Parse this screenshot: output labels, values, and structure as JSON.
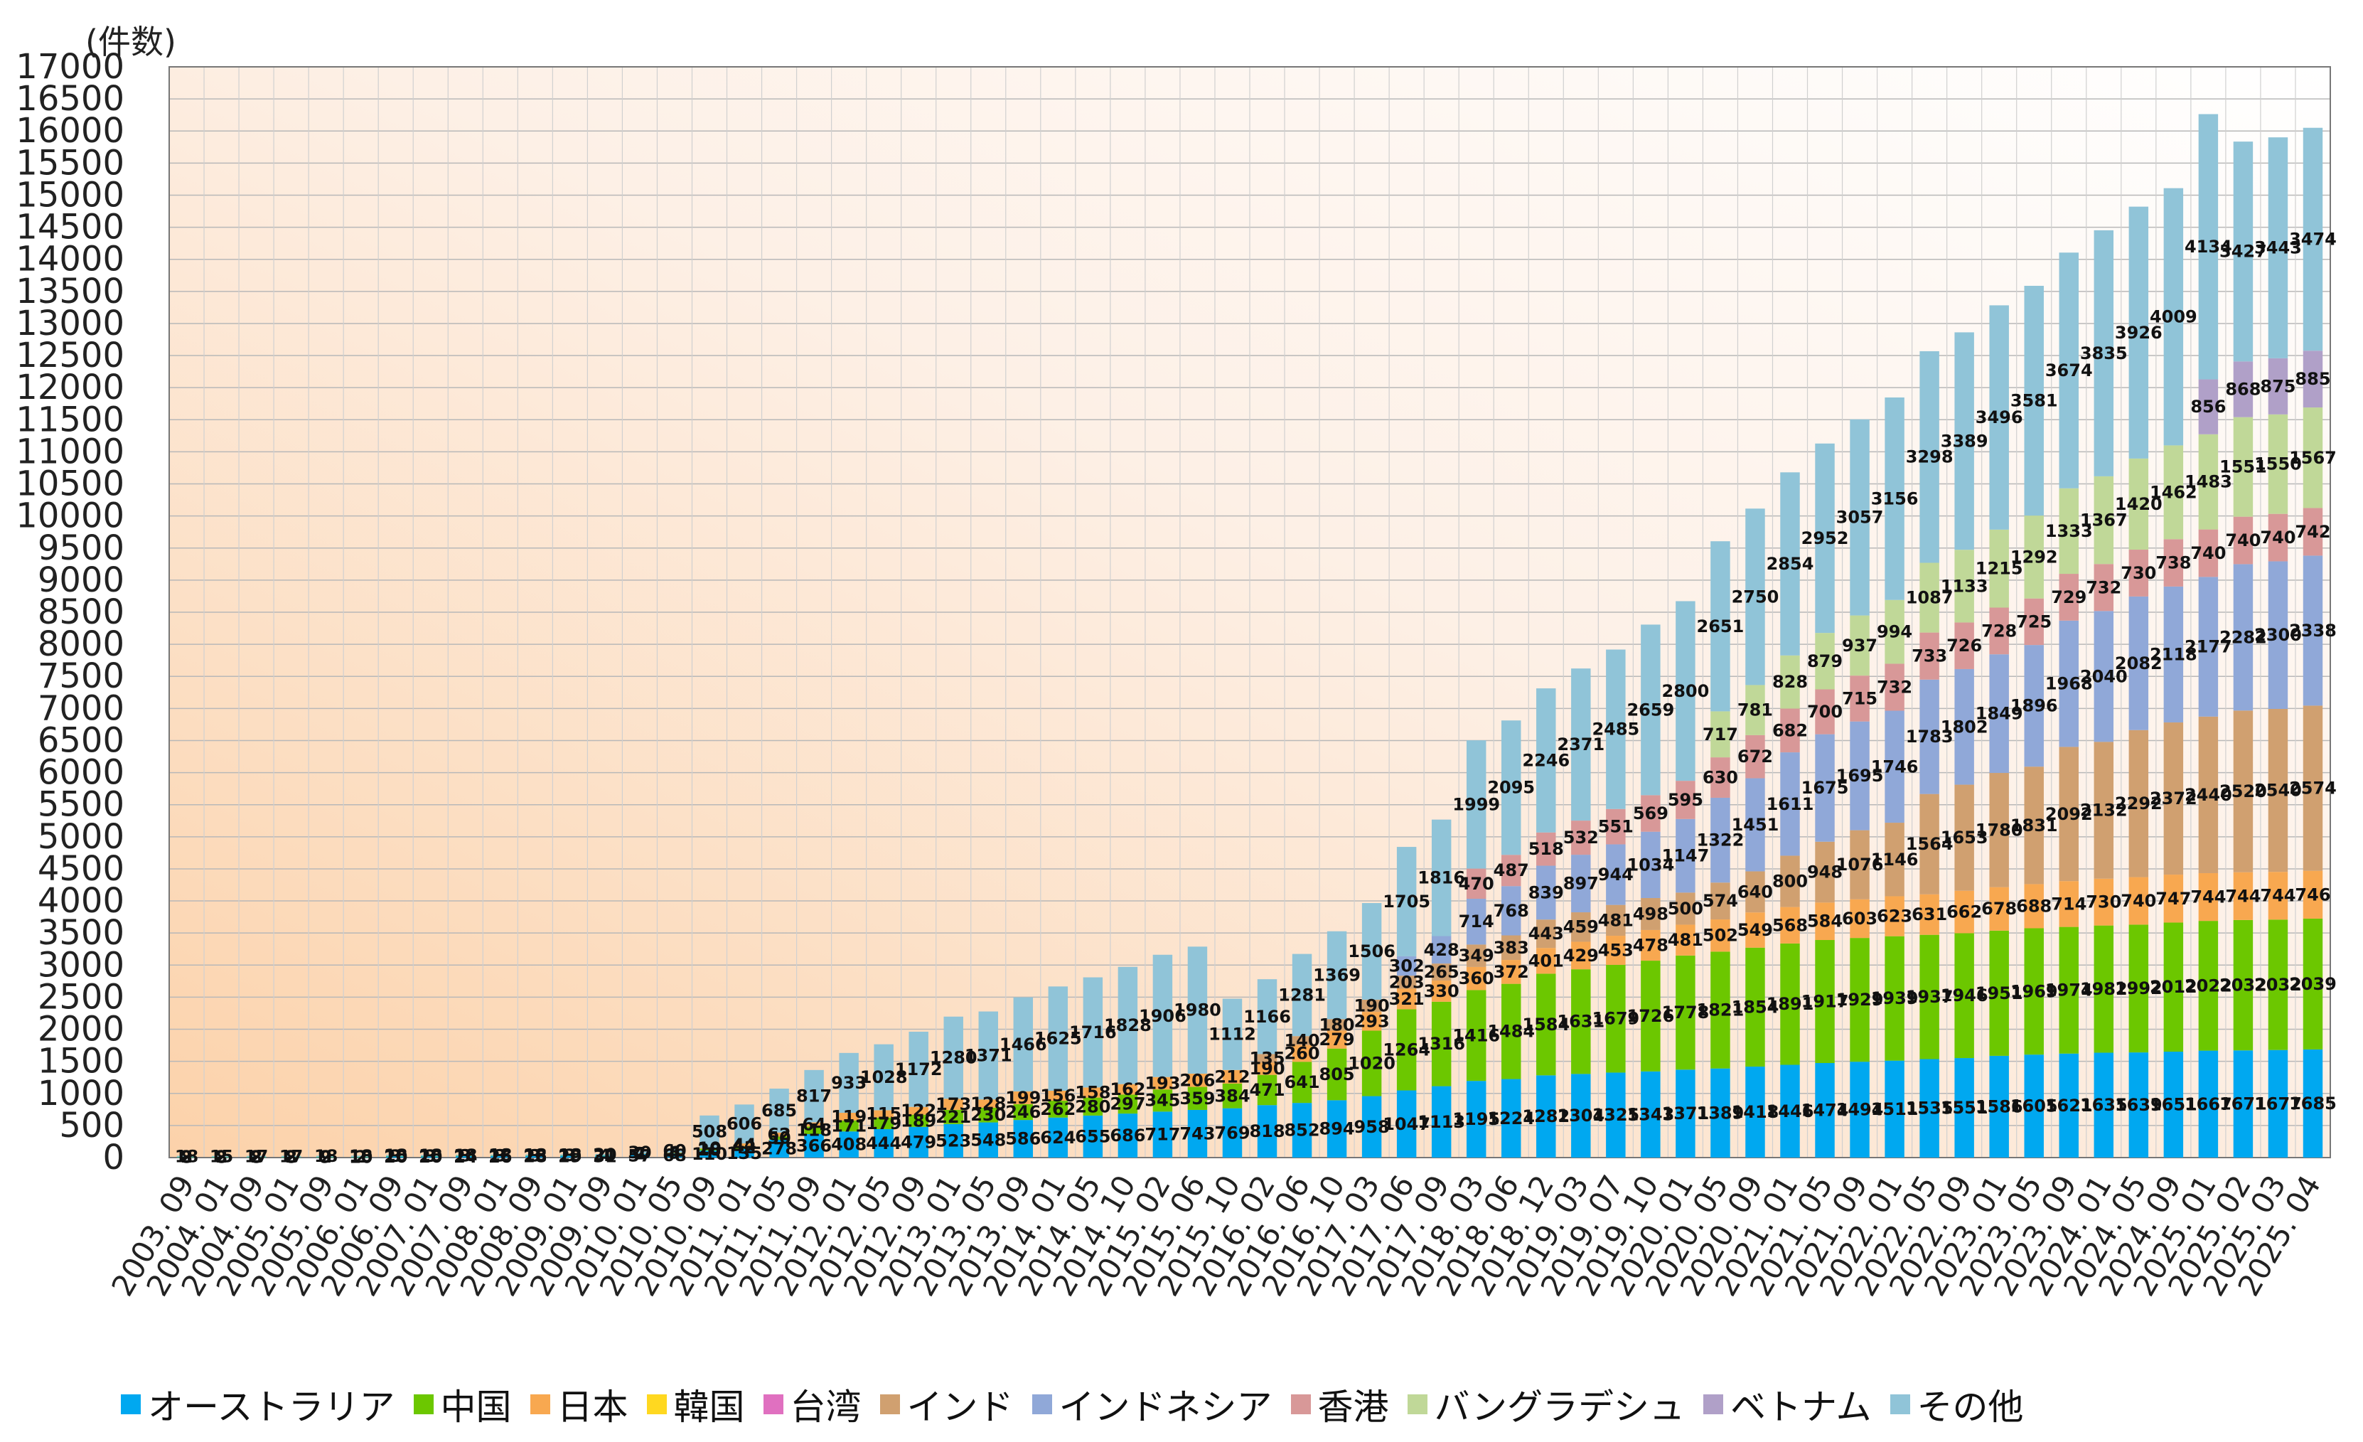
{
  "chart_data": {
    "type": "bar",
    "stacked": true,
    "ylabel": "(件数)",
    "ylim": [
      0,
      17000
    ],
    "ytick_step": 500,
    "grid": true,
    "legend_position": "bottom",
    "categories": [
      "2003.09",
      "2004.01",
      "2004.09",
      "2005.01",
      "2005.09",
      "2006.01",
      "2006.09",
      "2007.01",
      "2007.09",
      "2008.01",
      "2008.09",
      "2009.01",
      "2009.09",
      "2010.01",
      "2010.05",
      "2010.09",
      "2011.01",
      "2011.05",
      "2011.09",
      "2012.01",
      "2012.05",
      "2012.09",
      "2013.01",
      "2013.05",
      "2013.09",
      "2014.01",
      "2014.05",
      "2014.10",
      "2015.02",
      "2015.06",
      "2015.10",
      "2016.02",
      "2016.06",
      "2016.10",
      "2017.03",
      "2017.06",
      "2017.09",
      "2018.03",
      "2018.06",
      "2018.12",
      "2019.03",
      "2019.07",
      "2019.10",
      "2020.01",
      "2020.05",
      "2020.09",
      "2021.01",
      "2021.05",
      "2021.09",
      "2022.01",
      "2022.05",
      "2022.09",
      "2023.01",
      "2023.05",
      "2023.09",
      "2024.01",
      "2024.05",
      "2024.09",
      "2025.01",
      "2025.02",
      "2025.03",
      "2025.04"
    ],
    "tick_labels_shown": [
      "2003. 09",
      "2004. 01",
      "2004. 09",
      "2005. 01",
      "2005. 09",
      "2006. 01",
      "2006. 09",
      "2007. 01",
      "2007. 09",
      "2008. 01",
      "2008. 09",
      "2009. 01",
      "2009. 09",
      "2010. 01",
      "2010. 05",
      "2010. 09",
      "2011. 01",
      "2011. 05",
      "2011. 09",
      "2012. 01",
      "2012. 05",
      "2012. 09",
      "2013. 01",
      "2013. 05",
      "2013. 09",
      "2014. 01",
      "2014. 05",
      "2014. 10",
      "2015. 02",
      "2015. 06",
      "2015. 10",
      "2016. 02",
      "2016. 06",
      "2016. 10",
      "2017. 03",
      "2017. 06",
      "2017. 09",
      "2018. 03",
      "2018. 06",
      "2018. 12",
      "2019. 03",
      "2019. 07",
      "2019. 10",
      "2020. 01",
      "2020. 05",
      "2020. 09",
      "2021. 01",
      "2021. 05",
      "2021. 09",
      "2022. 01",
      "2022. 05",
      "2022. 09",
      "2023. 01",
      "2023. 05",
      "2023. 09",
      "2024. 01",
      "2024. 05",
      "2024. 09",
      "2025. 01",
      "2025. 02",
      "2025. 03",
      "2025. 04"
    ],
    "series": [
      {
        "name": "オーストラリア",
        "color": "#00A8F0",
        "values": [
          8,
          8,
          8,
          8,
          9,
          10,
          20,
          20,
          24,
          26,
          28,
          29,
          31,
          57,
          68,
          110,
          135,
          278,
          366,
          408,
          444,
          479,
          523,
          548,
          586,
          624,
          655,
          686,
          717,
          743,
          769,
          818,
          852,
          894,
          958,
          1047,
          1113,
          1195,
          1224,
          1282,
          1304,
          1325,
          1343,
          1371,
          1389,
          1418,
          1446,
          1474,
          1494,
          1511,
          1535,
          1551,
          1586,
          1605,
          1621,
          1635,
          1639,
          1651,
          1667,
          1671,
          1677,
          1685
        ]
      },
      {
        "name": "中国",
        "color": "#6CC700",
        "values": [
          2,
          2,
          2,
          2,
          2,
          2,
          3,
          3,
          3,
          3,
          3,
          3,
          4,
          4,
          5,
          28,
          42,
          50,
          118,
          171,
          179,
          189,
          221,
          230,
          246,
          262,
          280,
          297,
          345,
          359,
          384,
          471,
          641,
          805,
          1020,
          1264,
          1316,
          1416,
          1484,
          1584,
          1631,
          1679,
          1726,
          1778,
          1821,
          1854,
          1891,
          1917,
          1929,
          1939,
          1937,
          1946,
          1951,
          1969,
          1974,
          1982,
          1992,
          2012,
          2022,
          2032,
          2032,
          2039
        ]
      },
      {
        "name": "日本",
        "color": "#F8A850",
        "values": [
          0,
          0,
          0,
          0,
          0,
          0,
          0,
          0,
          0,
          0,
          0,
          0,
          0,
          2,
          4,
          10,
          44,
          62,
          64,
          119,
          115,
          122,
          173,
          128,
          199,
          156,
          158,
          162,
          193,
          206,
          212,
          190,
          260,
          279,
          293,
          321,
          330,
          360,
          372,
          401,
          429,
          453,
          478,
          481,
          502,
          549,
          568,
          584,
          603,
          623,
          631,
          662,
          678,
          688,
          714,
          730,
          740,
          747,
          744,
          744,
          744,
          746
        ]
      },
      {
        "name": "韓国",
        "color": "#FFD820",
        "values": [
          0,
          0,
          0,
          0,
          0,
          0,
          0,
          0,
          0,
          0,
          0,
          0,
          0,
          0,
          0,
          0,
          0,
          0,
          0,
          0,
          0,
          0,
          0,
          0,
          0,
          0,
          0,
          0,
          0,
          0,
          0,
          0,
          0,
          0,
          0,
          0,
          0,
          0,
          0,
          0,
          0,
          0,
          0,
          0,
          0,
          0,
          0,
          0,
          0,
          0,
          0,
          0,
          0,
          0,
          0,
          0,
          0,
          0,
          0,
          0,
          0,
          0
        ]
      },
      {
        "name": "台湾",
        "color": "#E070C0",
        "values": [
          0,
          0,
          0,
          0,
          0,
          0,
          0,
          0,
          0,
          0,
          0,
          0,
          0,
          0,
          0,
          0,
          0,
          0,
          0,
          0,
          0,
          0,
          0,
          0,
          0,
          0,
          0,
          0,
          0,
          0,
          0,
          0,
          0,
          0,
          0,
          0,
          0,
          0,
          0,
          0,
          0,
          0,
          0,
          0,
          0,
          0,
          0,
          0,
          0,
          0,
          0,
          0,
          0,
          0,
          0,
          0,
          0,
          0,
          0,
          0,
          0,
          0
        ]
      },
      {
        "name": "インド",
        "color": "#D0A070",
        "values": [
          0,
          0,
          0,
          0,
          0,
          0,
          0,
          0,
          0,
          0,
          0,
          0,
          0,
          0,
          0,
          0,
          0,
          0,
          0,
          0,
          0,
          0,
          0,
          0,
          0,
          0,
          0,
          0,
          0,
          0,
          0,
          135,
          140,
          180,
          190,
          203,
          265,
          349,
          383,
          443,
          459,
          481,
          498,
          500,
          574,
          640,
          800,
          948,
          1076,
          1146,
          1564,
          1653,
          1780,
          1831,
          2092,
          2132,
          2292,
          2372,
          2440,
          2520,
          2540,
          2574
        ]
      },
      {
        "name": "インドネシア",
        "color": "#90A8D8",
        "values": [
          0,
          0,
          0,
          0,
          0,
          0,
          0,
          0,
          0,
          0,
          0,
          0,
          0,
          0,
          0,
          0,
          0,
          0,
          0,
          0,
          0,
          0,
          0,
          0,
          0,
          0,
          0,
          0,
          0,
          0,
          0,
          0,
          0,
          0,
          0,
          302,
          428,
          714,
          768,
          839,
          897,
          944,
          1034,
          1147,
          1322,
          1451,
          1611,
          1675,
          1695,
          1746,
          1783,
          1802,
          1849,
          1896,
          1968,
          2040,
          2082,
          2118,
          2177,
          2282,
          2300,
          2338
        ]
      },
      {
        "name": "香港",
        "color": "#D89898",
        "values": [
          0,
          0,
          0,
          0,
          0,
          0,
          0,
          0,
          0,
          0,
          0,
          0,
          0,
          0,
          0,
          0,
          0,
          0,
          0,
          0,
          0,
          0,
          0,
          0,
          0,
          0,
          0,
          0,
          0,
          0,
          0,
          0,
          0,
          0,
          0,
          0,
          0,
          470,
          487,
          518,
          532,
          551,
          569,
          595,
          630,
          672,
          682,
          700,
          715,
          732,
          733,
          726,
          728,
          725,
          729,
          732,
          730,
          738,
          740,
          740,
          740,
          742
        ]
      },
      {
        "name": "バングラデシュ",
        "color": "#C0D898",
        "values": [
          0,
          0,
          0,
          0,
          0,
          0,
          0,
          0,
          0,
          0,
          0,
          0,
          0,
          0,
          0,
          0,
          0,
          0,
          0,
          0,
          0,
          0,
          0,
          0,
          0,
          0,
          0,
          0,
          0,
          0,
          0,
          0,
          0,
          0,
          0,
          0,
          0,
          0,
          0,
          0,
          0,
          0,
          0,
          0,
          717,
          781,
          828,
          879,
          937,
          994,
          1087,
          1133,
          1215,
          1292,
          1333,
          1367,
          1420,
          1462,
          1483,
          1551,
          1550,
          1567
        ]
      },
      {
        "name": "ベトナム",
        "color": "#B0A0C8",
        "values": [
          0,
          0,
          0,
          0,
          0,
          0,
          0,
          0,
          0,
          0,
          0,
          0,
          0,
          0,
          0,
          0,
          0,
          0,
          0,
          0,
          0,
          0,
          0,
          0,
          0,
          0,
          0,
          0,
          0,
          0,
          0,
          0,
          0,
          0,
          0,
          0,
          0,
          0,
          0,
          0,
          0,
          0,
          0,
          0,
          0,
          0,
          0,
          0,
          0,
          0,
          0,
          0,
          0,
          0,
          0,
          0,
          0,
          0,
          856,
          868,
          875,
          885
        ]
      },
      {
        "name": "その他",
        "color": "#90C4D8",
        "values": [
          18,
          15,
          17,
          17,
          18,
          18,
          18,
          18,
          18,
          18,
          18,
          18,
          20,
          30,
          60,
          508,
          606,
          685,
          817,
          933,
          1028,
          1172,
          1280,
          1371,
          1466,
          1625,
          1716,
          1828,
          1906,
          1980,
          1112,
          1166,
          1281,
          1369,
          1506,
          1705,
          1816,
          1999,
          2095,
          2246,
          2371,
          2485,
          2659,
          2800,
          2651,
          2750,
          2854,
          2952,
          3057,
          3156,
          3298,
          3389,
          3496,
          3581,
          3674,
          3835,
          3926,
          4009,
          4134,
          3427,
          3443,
          3474
        ]
      }
    ]
  },
  "legend_items": [
    {
      "label": "オーストラリア",
      "color": "#00A8F0"
    },
    {
      "label": "中国",
      "color": "#6CC700"
    },
    {
      "label": "日本",
      "color": "#F8A850"
    },
    {
      "label": "韓国",
      "color": "#FFD820"
    },
    {
      "label": "台湾",
      "color": "#E070C0"
    },
    {
      "label": "インド",
      "color": "#D0A070"
    },
    {
      "label": "インドネシア",
      "color": "#90A8D8"
    },
    {
      "label": "香港",
      "color": "#D89898"
    },
    {
      "label": "バングラデシュ",
      "color": "#C0D898"
    },
    {
      "label": "ベトナム",
      "color": "#B0A0C8"
    },
    {
      "label": "その他",
      "color": "#90C4D8"
    }
  ]
}
